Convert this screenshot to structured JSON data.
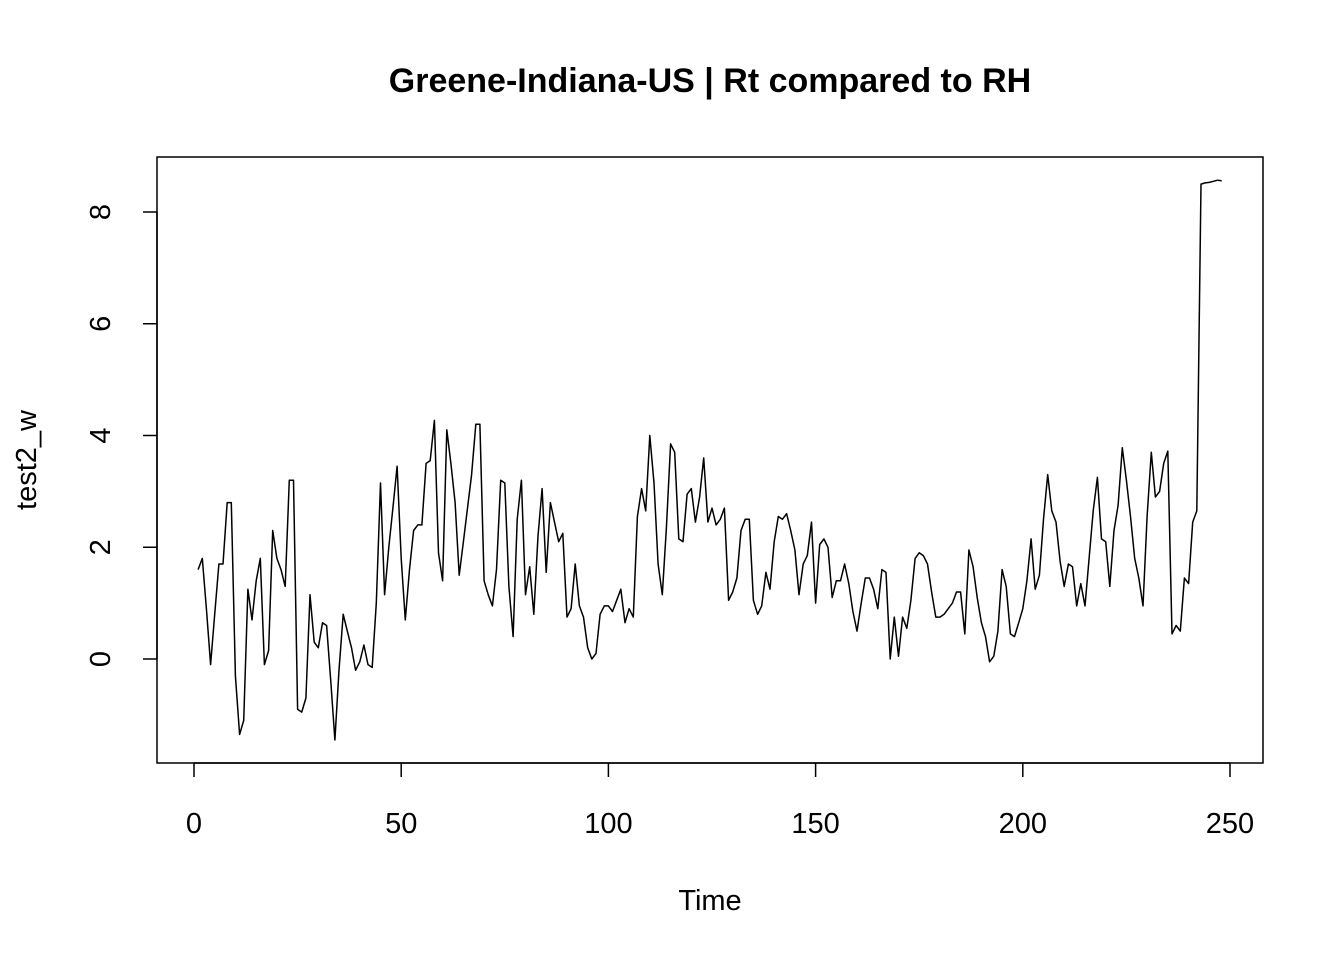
{
  "chart_data": {
    "type": "line",
    "title": "Greene-Indiana-US | Rt compared to RH",
    "xlabel": "Time",
    "ylabel": "test2_w",
    "xlim": [
      1,
      248
    ],
    "ylim": [
      -1.45,
      8.6
    ],
    "xticks": [
      0,
      50,
      100,
      150,
      200,
      250
    ],
    "yticks": [
      0,
      2,
      4,
      6,
      8
    ],
    "xtick_labels": [
      "0",
      "50",
      "100",
      "150",
      "200",
      "250"
    ],
    "ytick_labels": [
      "0",
      "2",
      "4",
      "6",
      "8"
    ],
    "grid": false,
    "series": [
      {
        "color": "#000000",
        "x": [
          1,
          2,
          3,
          4,
          5,
          6,
          7,
          8,
          9,
          10,
          11,
          12,
          13,
          14,
          15,
          16,
          17,
          18,
          19,
          20,
          21,
          22,
          23,
          24,
          25,
          26,
          27,
          28,
          29,
          30,
          31,
          32,
          33,
          34,
          35,
          36,
          37,
          38,
          39,
          40,
          41,
          42,
          43,
          44,
          45,
          46,
          47,
          48,
          49,
          50,
          51,
          52,
          53,
          54,
          55,
          56,
          57,
          58,
          59,
          60,
          61,
          62,
          63,
          64,
          65,
          66,
          67,
          68,
          69,
          70,
          71,
          72,
          73,
          74,
          75,
          76,
          77,
          78,
          79,
          80,
          81,
          82,
          83,
          84,
          85,
          86,
          87,
          88,
          89,
          90,
          91,
          92,
          93,
          94,
          95,
          96,
          97,
          98,
          99,
          100,
          101,
          102,
          103,
          104,
          105,
          106,
          107,
          108,
          109,
          110,
          111,
          112,
          113,
          114,
          115,
          116,
          117,
          118,
          119,
          120,
          121,
          122,
          123,
          124,
          125,
          126,
          127,
          128,
          129,
          130,
          131,
          132,
          133,
          134,
          135,
          136,
          137,
          138,
          139,
          140,
          141,
          142,
          143,
          144,
          145,
          146,
          147,
          148,
          149,
          150,
          151,
          152,
          153,
          154,
          155,
          156,
          157,
          158,
          159,
          160,
          161,
          162,
          163,
          164,
          165,
          166,
          167,
          168,
          169,
          170,
          171,
          172,
          173,
          174,
          175,
          176,
          177,
          178,
          179,
          180,
          181,
          182,
          183,
          184,
          185,
          186,
          187,
          188,
          189,
          190,
          191,
          192,
          193,
          194,
          195,
          196,
          197,
          198,
          199,
          200,
          201,
          202,
          203,
          204,
          205,
          206,
          207,
          208,
          209,
          210,
          211,
          212,
          213,
          214,
          215,
          216,
          217,
          218,
          219,
          220,
          221,
          222,
          223,
          224,
          225,
          226,
          227,
          228,
          229,
          230,
          231,
          232,
          233,
          234,
          235,
          236,
          237,
          238,
          239,
          240,
          241,
          242,
          243,
          244,
          245,
          246,
          247,
          248
        ],
        "y": [
          1.6,
          1.8,
          0.9,
          -0.1,
          0.8,
          1.7,
          1.7,
          2.8,
          2.8,
          -0.3,
          -1.35,
          -1.1,
          1.25,
          0.7,
          1.4,
          1.8,
          -0.1,
          0.15,
          2.3,
          1.8,
          1.6,
          1.3,
          3.2,
          3.2,
          -0.9,
          -0.95,
          -0.7,
          1.15,
          0.3,
          0.2,
          0.65,
          0.6,
          -0.4,
          -1.45,
          -0.2,
          0.8,
          0.5,
          0.2,
          -0.2,
          -0.05,
          0.25,
          -0.1,
          -0.15,
          1.0,
          3.15,
          1.15,
          2.0,
          2.7,
          3.45,
          1.8,
          0.7,
          1.6,
          2.3,
          2.4,
          2.4,
          3.5,
          3.55,
          4.27,
          1.9,
          1.4,
          4.1,
          3.5,
          2.8,
          1.5,
          2.1,
          2.7,
          3.3,
          4.2,
          4.2,
          1.4,
          1.15,
          0.95,
          1.6,
          3.2,
          3.15,
          1.3,
          0.4,
          2.5,
          3.2,
          1.15,
          1.65,
          0.8,
          2.2,
          3.05,
          1.55,
          2.8,
          2.45,
          2.1,
          2.25,
          0.75,
          0.9,
          1.7,
          0.95,
          0.75,
          0.2,
          0.0,
          0.1,
          0.8,
          0.95,
          0.95,
          0.85,
          1.05,
          1.25,
          0.65,
          0.9,
          0.75,
          2.55,
          3.05,
          2.65,
          4.0,
          3.15,
          1.7,
          1.15,
          2.35,
          3.85,
          3.7,
          2.15,
          2.1,
          2.95,
          3.05,
          2.45,
          2.9,
          3.6,
          2.45,
          2.7,
          2.4,
          2.5,
          2.7,
          1.05,
          1.2,
          1.45,
          2.3,
          2.5,
          2.5,
          1.05,
          0.8,
          0.95,
          1.55,
          1.25,
          2.1,
          2.55,
          2.5,
          2.6,
          2.3,
          1.95,
          1.15,
          1.7,
          1.85,
          2.45,
          1.0,
          2.05,
          2.15,
          2.0,
          1.1,
          1.4,
          1.4,
          1.7,
          1.35,
          0.85,
          0.5,
          1.0,
          1.45,
          1.45,
          1.25,
          0.9,
          1.6,
          1.55,
          0.0,
          0.75,
          0.05,
          0.75,
          0.55,
          1.05,
          1.8,
          1.9,
          1.85,
          1.7,
          1.2,
          0.75,
          0.75,
          0.8,
          0.9,
          1.0,
          1.2,
          1.2,
          0.45,
          1.95,
          1.65,
          1.1,
          0.65,
          0.4,
          -0.05,
          0.05,
          0.5,
          1.6,
          1.3,
          0.45,
          0.4,
          0.65,
          0.9,
          1.4,
          2.15,
          1.25,
          1.5,
          2.5,
          3.3,
          2.65,
          2.45,
          1.75,
          1.3,
          1.7,
          1.65,
          0.95,
          1.35,
          0.95,
          1.8,
          2.65,
          3.25,
          2.15,
          2.1,
          1.3,
          2.3,
          2.75,
          3.78,
          3.2,
          2.55,
          1.8,
          1.45,
          0.95,
          2.55,
          3.7,
          2.9,
          3.0,
          3.5,
          3.72,
          0.45,
          0.6,
          0.5,
          1.45,
          1.35,
          2.45,
          2.65,
          8.5,
          8.52,
          8.53,
          8.55,
          8.57,
          8.56
        ]
      }
    ]
  }
}
